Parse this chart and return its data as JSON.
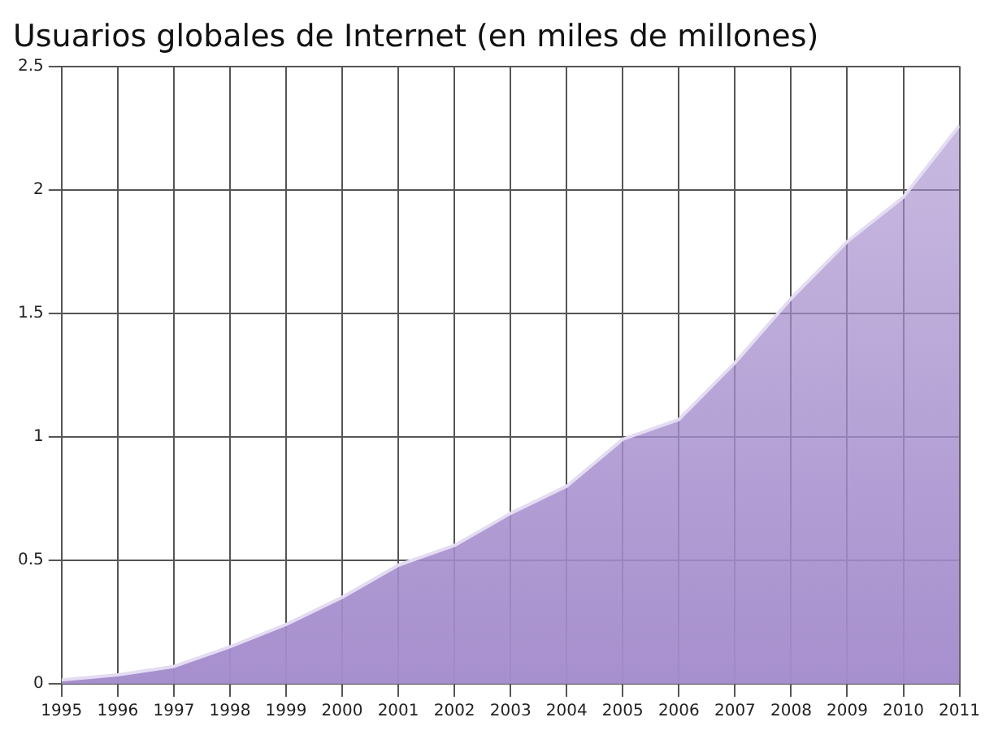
{
  "chart_data": {
    "type": "area",
    "title": "Usuarios globales de Internet (en miles de millones)",
    "x": [
      1995,
      1996,
      1997,
      1998,
      1999,
      2000,
      2001,
      2002,
      2003,
      2004,
      2005,
      2006,
      2007,
      2008,
      2009,
      2010,
      2011
    ],
    "values": [
      0.016,
      0.036,
      0.07,
      0.15,
      0.24,
      0.35,
      0.48,
      0.56,
      0.69,
      0.8,
      0.99,
      1.07,
      1.3,
      1.56,
      1.79,
      1.97,
      2.26
    ],
    "color": "#a48ccc",
    "xlim": [
      1995,
      2011
    ],
    "xticks": [
      1995,
      1996,
      1997,
      1998,
      1999,
      2000,
      2001,
      2002,
      2003,
      2004,
      2005,
      2006,
      2007,
      2008,
      2009,
      2010,
      2011
    ],
    "ylim": [
      0,
      2.5
    ],
    "yticks": [
      0,
      0.5,
      1,
      1.5,
      2,
      2.5
    ],
    "grid": true
  }
}
